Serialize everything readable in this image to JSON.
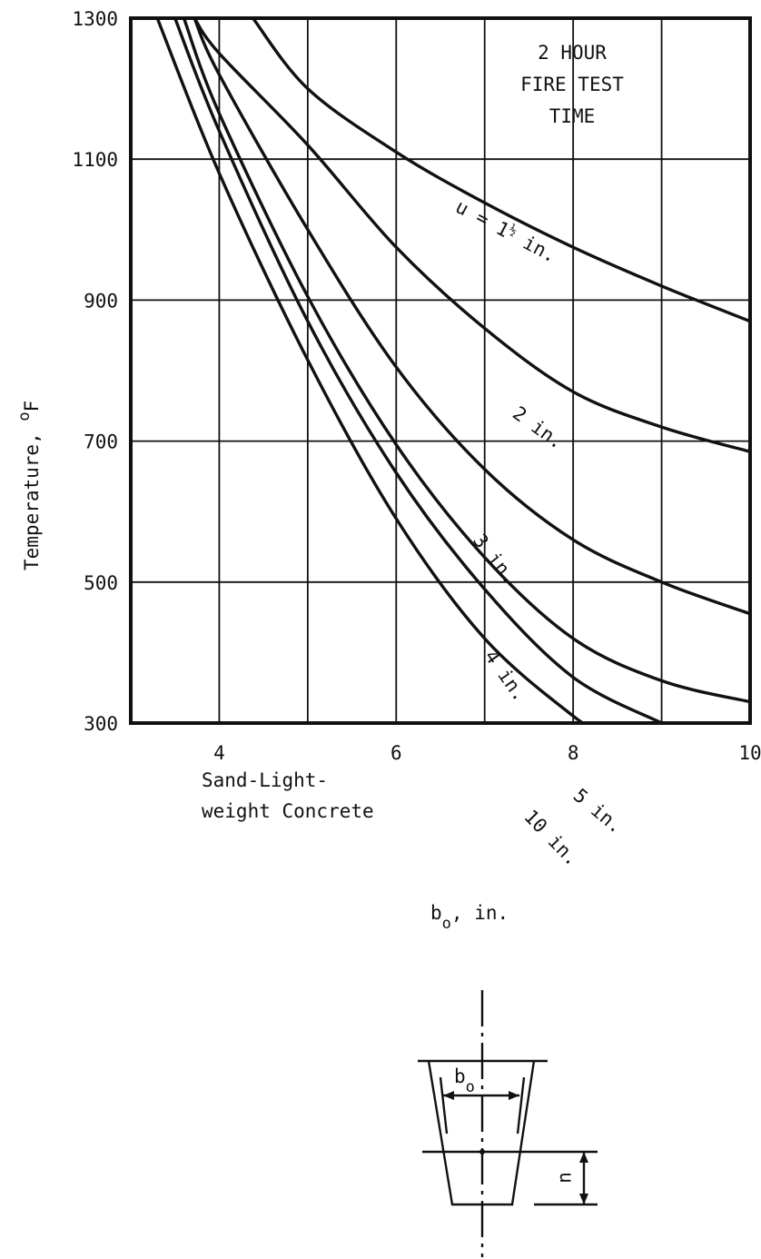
{
  "chart_data": {
    "type": "line",
    "xlabel": "b",
    "xlabel_sub": "o",
    "xlabel_unit": ", in.",
    "ylabel": "Temperature, ",
    "ylabel_unit_sup": "o",
    "ylabel_unit": "F",
    "xlim": [
      3,
      10
    ],
    "ylim": [
      300,
      1300
    ],
    "x_ticks": [
      4,
      6,
      8,
      10
    ],
    "y_ticks": [
      300,
      500,
      700,
      900,
      1100,
      1300
    ],
    "grid": "vertical at every 1 in., horizontal at every 200",
    "annotation_title": [
      "2 HOUR",
      "FIRE TEST",
      "TIME"
    ],
    "annotation_material": [
      "Sand-Light-",
      "weight Concrete"
    ],
    "series": [
      {
        "name": "u = 1½ in.",
        "label_parts": [
          "u = 1",
          "½",
          " in."
        ],
        "points": [
          [
            4.38,
            1300
          ],
          [
            5,
            1200
          ],
          [
            6,
            1110
          ],
          [
            7,
            1038
          ],
          [
            8,
            975
          ],
          [
            9,
            920
          ],
          [
            10,
            870
          ]
        ]
      },
      {
        "name": "2 in.",
        "points": [
          [
            3.72,
            1300
          ],
          [
            4,
            1250
          ],
          [
            5,
            1120
          ],
          [
            6,
            975
          ],
          [
            7,
            860
          ],
          [
            8,
            770
          ],
          [
            9,
            720
          ],
          [
            10,
            685
          ]
        ]
      },
      {
        "name": "3 in.",
        "points": [
          [
            3.72,
            1300
          ],
          [
            4,
            1220
          ],
          [
            5,
            1000
          ],
          [
            6,
            805
          ],
          [
            7,
            660
          ],
          [
            8,
            560
          ],
          [
            9,
            500
          ],
          [
            10,
            455
          ]
        ]
      },
      {
        "name": "4 in.",
        "points": [
          [
            3.6,
            1300
          ],
          [
            4,
            1165
          ],
          [
            5,
            905
          ],
          [
            6,
            695
          ],
          [
            7,
            535
          ],
          [
            8,
            420
          ],
          [
            9,
            360
          ],
          [
            10,
            330
          ]
        ]
      },
      {
        "name": "5 in.",
        "points": [
          [
            3.5,
            1300
          ],
          [
            4,
            1140
          ],
          [
            5,
            870
          ],
          [
            6,
            655
          ],
          [
            7,
            490
          ],
          [
            8,
            365
          ],
          [
            9,
            300
          ]
        ]
      },
      {
        "name": "10 in.",
        "points": [
          [
            3.3,
            1300
          ],
          [
            4,
            1080
          ],
          [
            5,
            815
          ],
          [
            6,
            590
          ],
          [
            7,
            420
          ],
          [
            8,
            310
          ],
          [
            8.3,
            290
          ]
        ]
      }
    ]
  },
  "diagram": {
    "dimension_label": "b",
    "dimension_label_sub": "o",
    "depth_label": "u"
  }
}
